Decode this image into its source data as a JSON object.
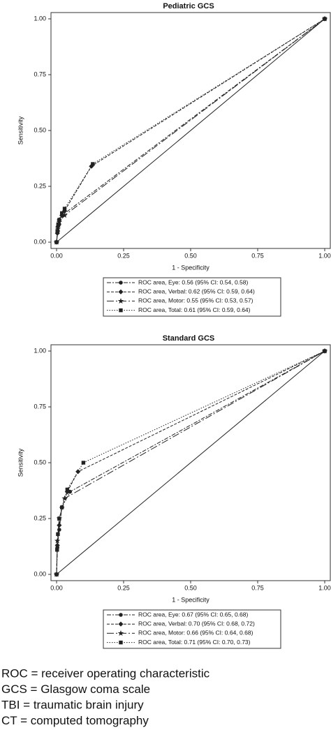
{
  "chart_data": [
    {
      "type": "line",
      "title": "Pediatric GCS",
      "x_label": "1 - Specificity",
      "y_label": "Sensitivity",
      "xlim": [
        0,
        1
      ],
      "ylim": [
        0,
        1
      ],
      "xticks": [
        {
          "value": 0,
          "label": "0.00"
        },
        {
          "value": 0.25,
          "label": "0.25"
        },
        {
          "value": 0.5,
          "label": "0.50"
        },
        {
          "value": 0.75,
          "label": "0.75"
        },
        {
          "value": 1,
          "label": "1.00"
        }
      ],
      "yticks": [
        {
          "value": 0,
          "label": "0.00"
        },
        {
          "value": 0.25,
          "label": "0.25"
        },
        {
          "value": 0.5,
          "label": "0.50"
        },
        {
          "value": 0.75,
          "label": "0.75"
        },
        {
          "value": 1,
          "label": "1.00"
        }
      ],
      "series": [
        {
          "name": "ROC area, Eye: 0.56 (95% CI: 0.54, 0.58)",
          "color": "#222222",
          "marker": "circle",
          "dash": "6 2 2 2",
          "x": [
            0,
            0.005,
            0.01,
            0.02,
            1
          ],
          "values": [
            0,
            0.05,
            0.08,
            0.12,
            1
          ]
        },
        {
          "name": "ROC area, Verbal: 0.62 (95% CI: 0.59, 0.64)",
          "color": "#222222",
          "marker": "diamond",
          "dash": "4 2",
          "x": [
            0,
            0.003,
            0.005,
            0.01,
            0.02,
            0.03,
            0.13,
            1
          ],
          "values": [
            0,
            0.04,
            0.07,
            0.1,
            0.12,
            0.14,
            0.34,
            1
          ]
        },
        {
          "name": "ROC area, Motor: 0.55 (95% CI: 0.53, 0.57)",
          "color": "#222222",
          "marker": "star",
          "dash": "10 3 2 3",
          "x": [
            0,
            0.005,
            0.01,
            0.03,
            1
          ],
          "values": [
            0,
            0.06,
            0.09,
            0.12,
            1
          ]
        },
        {
          "name": "ROC area, Total: 0.61 (95% CI: 0.59, 0.64)",
          "color": "#222222",
          "marker": "square",
          "dash": "1.5 2",
          "x": [
            0,
            0.003,
            0.006,
            0.01,
            0.02,
            0.03,
            0.135,
            1
          ],
          "values": [
            0,
            0.05,
            0.08,
            0.1,
            0.13,
            0.15,
            0.35,
            1
          ]
        }
      ]
    },
    {
      "type": "line",
      "title": "Standard GCS",
      "x_label": "1 - Specificity",
      "y_label": "Sensitivity",
      "xlim": [
        0,
        1
      ],
      "ylim": [
        0,
        1
      ],
      "xticks": [
        {
          "value": 0,
          "label": "0.00"
        },
        {
          "value": 0.25,
          "label": "0.25"
        },
        {
          "value": 0.5,
          "label": "0.50"
        },
        {
          "value": 0.75,
          "label": "0.75"
        },
        {
          "value": 1,
          "label": "1.00"
        }
      ],
      "yticks": [
        {
          "value": 0,
          "label": "0.00"
        },
        {
          "value": 0.25,
          "label": "0.25"
        },
        {
          "value": 0.5,
          "label": "0.50"
        },
        {
          "value": 0.75,
          "label": "0.75"
        },
        {
          "value": 1,
          "label": "1.00"
        }
      ],
      "series": [
        {
          "name": "ROC area, Eye: 0.67 (95% CI: 0.65, 0.68)",
          "color": "#222222",
          "marker": "circle",
          "dash": "6 2 2 2",
          "x": [
            0,
            0.003,
            0.01,
            0.02,
            0.05,
            1
          ],
          "values": [
            0,
            0.12,
            0.2,
            0.3,
            0.37,
            1
          ]
        },
        {
          "name": "ROC area, Verbal: 0.70 (95% CI: 0.68, 0.72)",
          "color": "#222222",
          "marker": "diamond",
          "dash": "4 2",
          "x": [
            0,
            0.003,
            0.01,
            0.02,
            0.04,
            0.08,
            1
          ],
          "values": [
            0,
            0.13,
            0.22,
            0.3,
            0.37,
            0.46,
            1
          ]
        },
        {
          "name": "ROC area, Motor: 0.66 (95% CI: 0.64, 0.68)",
          "color": "#222222",
          "marker": "star",
          "dash": "10 3 2 3",
          "x": [
            0,
            0.003,
            0.01,
            0.03,
            1
          ],
          "values": [
            0,
            0.15,
            0.25,
            0.34,
            1
          ]
        },
        {
          "name": "ROC area, Total: 0.71 (95% CI: 0.70, 0.73)",
          "color": "#222222",
          "marker": "square",
          "dash": "1.5 2",
          "x": [
            0,
            0.002,
            0.005,
            0.01,
            0.02,
            0.04,
            0.1,
            1
          ],
          "values": [
            0,
            0.11,
            0.18,
            0.25,
            0.3,
            0.38,
            0.5,
            1
          ]
        }
      ]
    }
  ],
  "footnotes": [
    "ROC = receiver operating characteristic",
    "GCS = Glasgow coma scale",
    "TBI = traumatic brain injury",
    "CT = computed tomography"
  ]
}
